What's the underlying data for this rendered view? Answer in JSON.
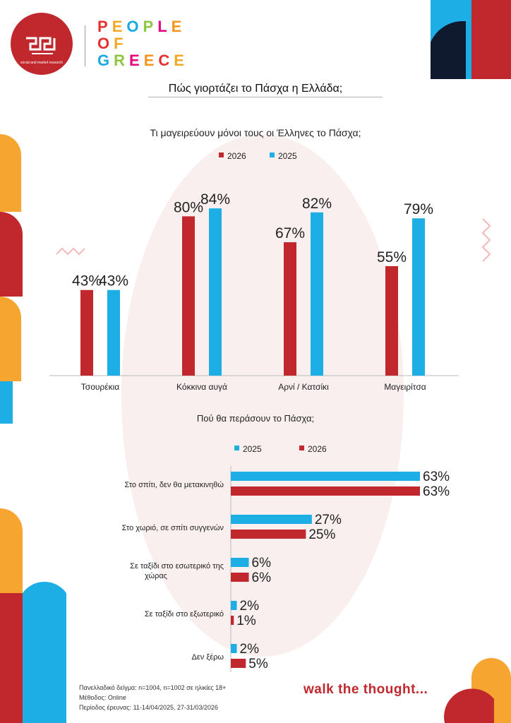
{
  "header": {
    "logo_subtitle": "social and market research",
    "brand_lines": [
      "PEOPLE",
      "OF",
      "GREECE"
    ],
    "brand_colors": [
      "#e5312f",
      "#f5a623",
      "#1aa9e1",
      "#8dc63f",
      "#e6007e",
      "#f7941d"
    ]
  },
  "main_title": "Πώς γιορτάζει το Πάσχα η Ελλάδα;",
  "colors": {
    "red": "#c0282e",
    "blue": "#1eaee6",
    "orange": "#f7a531"
  },
  "chart_data": [
    {
      "type": "bar",
      "title": "Τι μαγειρεύουν μόνοι τους οι Έλληνες το Πάσχα;",
      "legend_placement": "top",
      "categories": [
        "Τσουρέκια",
        "Κόκκινα αυγά",
        "Αρνί / Κατσίκι",
        "Μαγειρίτσα"
      ],
      "series": [
        {
          "name": "2026",
          "color": "#c0282e",
          "values": [
            43,
            80,
            67,
            55
          ],
          "labels": [
            "43%",
            "80%",
            "67%",
            "55%"
          ]
        },
        {
          "name": "2025",
          "color": "#1eaee6",
          "values": [
            43,
            84,
            82,
            79
          ],
          "labels": [
            "43%",
            "84%",
            "82%",
            "79%"
          ]
        }
      ],
      "ylim": [
        0,
        100
      ]
    },
    {
      "type": "bar",
      "orientation": "horizontal",
      "title": "Πού θα περάσουν το Πάσχα;",
      "legend_placement": "top",
      "categories": [
        "Στο σπίτι, δεν θα μετακινηθώ",
        "Στο χωριό, σε σπίτι συγγενών",
        "Σε ταξίδι στο εσωτερικό της χώρας",
        "Σε ταξίδι στο εξωτερικό",
        "Δεν ξέρω"
      ],
      "series": [
        {
          "name": "2025",
          "color": "#1eaee6",
          "values": [
            63,
            27,
            6,
            2,
            2
          ],
          "labels": [
            "63%",
            "27%",
            "6%",
            "2%",
            "2%"
          ]
        },
        {
          "name": "2026",
          "color": "#c0282e",
          "values": [
            63,
            25,
            6,
            1,
            5
          ],
          "labels": [
            "63%",
            "25%",
            "6%",
            "1%",
            "5%"
          ]
        }
      ],
      "xlim": [
        0,
        63
      ]
    }
  ],
  "footer": {
    "notes": [
      "Πανελλαδικό δείγμα: n=1004, n=1002 σε ηλικίες 18+",
      "Μέθοδος: Online",
      "Περίοδος έρευνας: 11-14/04/2025, 27-31/03/2026"
    ],
    "tagline": "walk the thought..."
  }
}
